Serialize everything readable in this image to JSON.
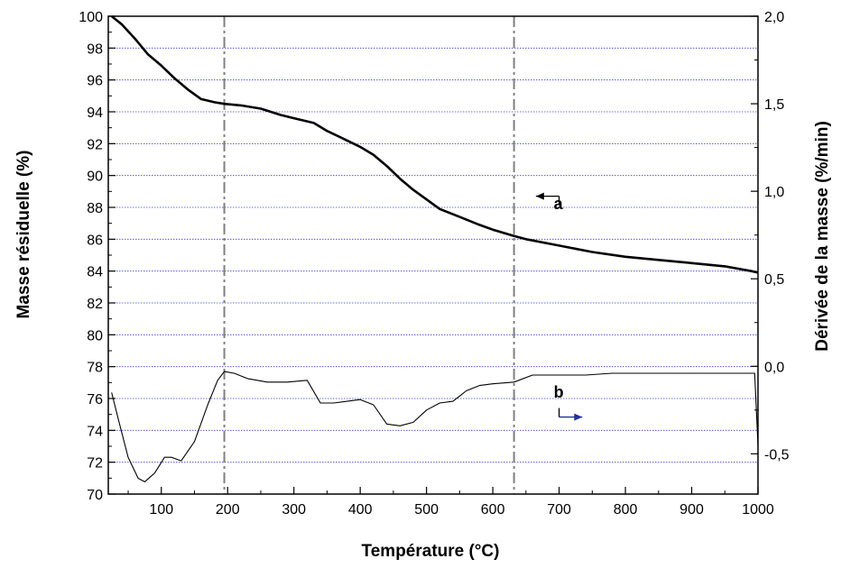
{
  "chart_data": {
    "type": "line",
    "xlabel": "Température (°C)",
    "ylabel_left": "Masse résiduelle (%)",
    "ylabel_right": "Dérivée de la masse (%/min)",
    "xlim": [
      20,
      1000
    ],
    "ylim_left": [
      70,
      100
    ],
    "ylim_right": [
      -0.73,
      2.0
    ],
    "x_ticks": [
      100,
      200,
      300,
      400,
      500,
      600,
      700,
      800,
      900,
      1000
    ],
    "x_tick_labels": [
      "100",
      "200",
      "300",
      "400",
      "500",
      "600",
      "700",
      "800",
      "900",
      "1000"
    ],
    "y_left_ticks": [
      70,
      72,
      74,
      76,
      78,
      80,
      82,
      84,
      86,
      88,
      90,
      92,
      94,
      96,
      98,
      100
    ],
    "y_left_tick_labels": [
      "70",
      "72",
      "74",
      "76",
      "78",
      "80",
      "82",
      "84",
      "86",
      "88",
      "90",
      "92",
      "94",
      "96",
      "98",
      "100"
    ],
    "y_right_ticks": [
      -0.5,
      0.0,
      0.5,
      1.0,
      1.5,
      2.0
    ],
    "y_right_tick_labels": [
      "-0,5",
      "0,0",
      "0,5",
      "1,0",
      "1,5",
      "2,0"
    ],
    "grid": "horizontal-dotted",
    "vertical_markers": [
      195,
      632
    ],
    "series": [
      {
        "name": "a",
        "axis": "left",
        "color": "#000000",
        "x": [
          25,
          40,
          60,
          80,
          100,
          120,
          140,
          160,
          180,
          195,
          220,
          250,
          280,
          300,
          330,
          350,
          380,
          400,
          420,
          440,
          460,
          480,
          500,
          520,
          550,
          580,
          600,
          632,
          650,
          700,
          750,
          800,
          850,
          900,
          950,
          990,
          1000
        ],
        "y": [
          100.0,
          99.5,
          98.6,
          97.6,
          96.9,
          96.1,
          95.4,
          94.8,
          94.6,
          94.5,
          94.4,
          94.2,
          93.8,
          93.6,
          93.3,
          92.8,
          92.2,
          91.8,
          91.3,
          90.6,
          89.8,
          89.1,
          88.5,
          87.9,
          87.4,
          86.9,
          86.6,
          86.2,
          86.0,
          85.6,
          85.2,
          84.9,
          84.7,
          84.5,
          84.3,
          84.0,
          83.9
        ]
      },
      {
        "name": "b",
        "axis": "right",
        "color": "#000000",
        "x": [
          25,
          35,
          50,
          65,
          75,
          90,
          105,
          115,
          130,
          150,
          170,
          185,
          195,
          210,
          230,
          260,
          290,
          320,
          340,
          360,
          380,
          400,
          420,
          440,
          460,
          480,
          500,
          520,
          540,
          560,
          580,
          600,
          632,
          660,
          700,
          740,
          780,
          820,
          860,
          900,
          940,
          980,
          995,
          1000
        ],
        "y": [
          -0.15,
          -0.3,
          -0.52,
          -0.64,
          -0.66,
          -0.61,
          -0.52,
          -0.52,
          -0.54,
          -0.43,
          -0.22,
          -0.08,
          -0.03,
          -0.04,
          -0.07,
          -0.09,
          -0.09,
          -0.08,
          -0.21,
          -0.21,
          -0.2,
          -0.19,
          -0.22,
          -0.33,
          -0.34,
          -0.32,
          -0.25,
          -0.21,
          -0.2,
          -0.14,
          -0.11,
          -0.1,
          -0.09,
          -0.05,
          -0.05,
          -0.05,
          -0.04,
          -0.04,
          -0.04,
          -0.04,
          -0.04,
          -0.04,
          -0.04,
          -0.45
        ]
      }
    ],
    "annotations": [
      {
        "text": "a",
        "x": 700,
        "y_left": 87.9,
        "arrow": "left",
        "arrow_from_x": 700,
        "arrow_to_x": 665,
        "arrow_y_left": 88.7
      },
      {
        "text": "b",
        "x": 700,
        "y_right": -0.18,
        "arrow": "right",
        "arrow_from_x": 700,
        "arrow_to_x": 735,
        "arrow_y_right": -0.29
      }
    ]
  }
}
